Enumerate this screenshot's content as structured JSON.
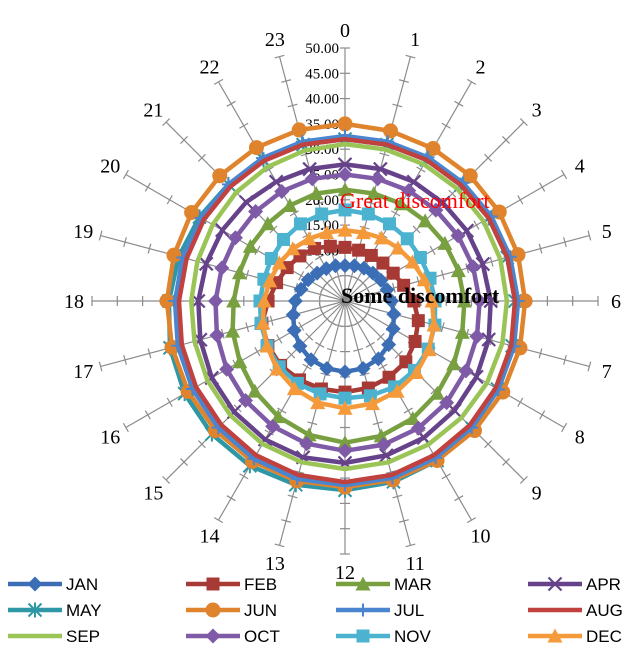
{
  "chart_data": {
    "type": "radar",
    "categories": [
      "0",
      "1",
      "2",
      "3",
      "4",
      "5",
      "6",
      "7",
      "8",
      "9",
      "10",
      "11",
      "12",
      "13",
      "14",
      "15",
      "16",
      "17",
      "18",
      "19",
      "20",
      "21",
      "22",
      "23"
    ],
    "rlim": [
      0,
      50
    ],
    "radial_ticks": [
      "10.00",
      "15.00",
      "20.00",
      "25.00",
      "30.00",
      "35.00",
      "40.00",
      "45.00",
      "50.00"
    ],
    "annotations": [
      {
        "text": "Great discomfort",
        "color": "#ff0000"
      },
      {
        "text": "Some discomfort",
        "color": "#000000"
      }
    ],
    "series": [
      {
        "name": "JAN",
        "color": "#3b6eb5",
        "marker": "diamond",
        "values": [
          7.0,
          7.2,
          7.5,
          7.8,
          8.2,
          8.6,
          9.2,
          10.0,
          11.0,
          12.2,
          13.2,
          13.8,
          14.0,
          13.8,
          13.4,
          12.6,
          11.6,
          10.6,
          9.8,
          9.0,
          8.4,
          7.8,
          7.4,
          7.2
        ]
      },
      {
        "name": "FEB",
        "color": "#a83a36",
        "marker": "square",
        "values": [
          10.6,
          10.4,
          10.4,
          10.6,
          11.0,
          12.0,
          13.6,
          15.0,
          16.0,
          17.0,
          17.4,
          17.8,
          18.0,
          18.0,
          18.0,
          18.0,
          17.6,
          17.0,
          15.2,
          14.0,
          13.2,
          12.6,
          12.0,
          11.2
        ]
      },
      {
        "name": "MAR",
        "color": "#78a040",
        "marker": "triangle",
        "values": [
          22.0,
          22.0,
          22.2,
          22.4,
          22.8,
          23.2,
          23.6,
          24.0,
          24.8,
          25.8,
          26.8,
          27.6,
          28.0,
          27.4,
          26.4,
          25.2,
          24.0,
          23.0,
          22.0,
          21.6,
          21.6,
          21.6,
          21.8,
          22.0
        ]
      },
      {
        "name": "APR",
        "color": "#66428a",
        "marker": "x",
        "values": [
          27.0,
          27.0,
          27.2,
          27.4,
          27.8,
          28.2,
          28.8,
          29.4,
          30.0,
          30.6,
          31.2,
          31.6,
          32.0,
          32.0,
          31.6,
          31.0,
          30.4,
          29.6,
          29.0,
          28.4,
          28.0,
          27.6,
          27.2,
          27.0
        ]
      },
      {
        "name": "MAY",
        "color": "#2e97a6",
        "marker": "star",
        "values": [
          32.0,
          32.0,
          32.2,
          32.4,
          32.8,
          33.2,
          33.6,
          34.2,
          34.8,
          35.6,
          36.4,
          37.0,
          37.4,
          37.6,
          37.6,
          37.2,
          36.6,
          35.8,
          34.8,
          34.0,
          33.2,
          32.6,
          32.2,
          32.0
        ]
      },
      {
        "name": "JUN",
        "color": "#e0832d",
        "marker": "circle",
        "values": [
          35.0,
          34.8,
          34.8,
          35.0,
          35.2,
          35.4,
          35.6,
          35.8,
          36.0,
          36.2,
          36.4,
          36.6,
          36.8,
          36.8,
          36.6,
          36.2,
          35.8,
          35.4,
          35.2,
          35.0,
          35.0,
          35.0,
          35.0,
          35.0
        ]
      },
      {
        "name": "JUL",
        "color": "#4a86d0",
        "marker": "plus",
        "values": [
          32.6,
          32.6,
          32.8,
          33.0,
          33.4,
          33.8,
          34.2,
          34.6,
          35.0,
          35.4,
          35.8,
          36.2,
          36.4,
          36.4,
          36.0,
          35.4,
          34.8,
          34.2,
          33.6,
          33.2,
          32.8,
          32.6,
          32.6,
          32.6
        ]
      },
      {
        "name": "AUG",
        "color": "#c0413e",
        "marker": "none",
        "values": [
          32.0,
          32.0,
          32.2,
          32.4,
          32.8,
          33.2,
          33.6,
          34.0,
          34.4,
          34.8,
          35.2,
          35.6,
          35.8,
          35.6,
          35.2,
          34.6,
          34.0,
          33.4,
          32.8,
          32.4,
          32.2,
          32.0,
          32.0,
          32.0
        ]
      },
      {
        "name": "SEP",
        "color": "#9bc457",
        "marker": "none",
        "values": [
          31.0,
          31.0,
          31.2,
          31.4,
          31.6,
          31.8,
          32.0,
          32.2,
          32.4,
          32.6,
          32.8,
          33.0,
          33.2,
          33.0,
          32.6,
          32.0,
          31.4,
          30.8,
          30.4,
          30.2,
          30.2,
          30.4,
          30.6,
          30.8
        ]
      },
      {
        "name": "OCT",
        "color": "#7f5aa6",
        "marker": "diamond",
        "values": [
          25.0,
          25.0,
          25.2,
          25.4,
          25.8,
          26.2,
          26.6,
          27.0,
          27.6,
          28.4,
          29.0,
          29.4,
          29.6,
          29.2,
          28.6,
          27.8,
          27.0,
          26.2,
          25.6,
          25.2,
          25.0,
          25.0,
          25.0,
          25.0
        ]
      },
      {
        "name": "NOV",
        "color": "#4bb3d0",
        "marker": "square",
        "values": [
          18.0,
          17.8,
          17.6,
          17.4,
          17.2,
          17.4,
          17.8,
          18.4,
          19.0,
          19.4,
          19.6,
          19.4,
          19.2,
          19.0,
          18.8,
          18.4,
          17.8,
          17.2,
          16.8,
          16.6,
          16.8,
          17.2,
          17.6,
          17.8
        ]
      },
      {
        "name": "DEC",
        "color": "#f59a3a",
        "marker": "triangle",
        "values": [
          14.0,
          14.0,
          14.4,
          14.8,
          15.4,
          16.2,
          17.2,
          18.2,
          19.2,
          20.0,
          20.6,
          21.0,
          21.2,
          20.8,
          20.0,
          19.0,
          17.8,
          16.8,
          16.0,
          15.4,
          15.0,
          14.6,
          14.2,
          14.0
        ]
      }
    ]
  }
}
